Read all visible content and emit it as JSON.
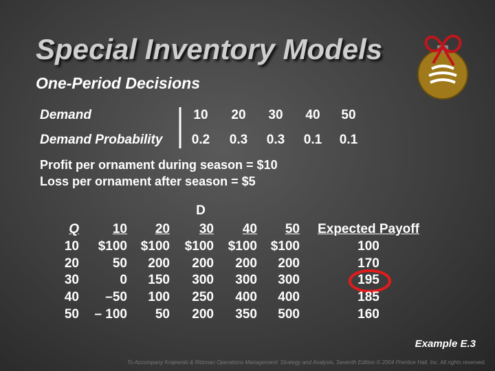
{
  "title": "Special Inventory Models",
  "subtitle": "One-Period Decisions",
  "demand_table": {
    "rows": [
      [
        "Demand",
        "10",
        "20",
        "30",
        "40",
        "50"
      ],
      [
        "Demand Probability",
        "0.2",
        "0.3",
        "0.3",
        "0.1",
        "0.1"
      ]
    ]
  },
  "notes": [
    "Profit per ornament during season = $10",
    "Loss per ornament after season = $5"
  ],
  "payoff_table": {
    "group_header": "D",
    "header": [
      "Q",
      "10",
      "20",
      "30",
      "40",
      "50",
      "Expected Payoff"
    ],
    "rows": [
      [
        "10",
        "$100",
        "$100",
        "$100",
        "$100",
        "$100",
        "100"
      ],
      [
        "20",
        "50",
        "200",
        "200",
        "200",
        "200",
        "170"
      ],
      [
        "30",
        "0",
        "150",
        "300",
        "300",
        "300",
        "195"
      ],
      [
        "40",
        "–50",
        "100",
        "250",
        "400",
        "400",
        "185"
      ],
      [
        "50",
        "– 100",
        "50",
        "200",
        "350",
        "500",
        "160"
      ]
    ]
  },
  "example": "Example E.3",
  "footer": "To Accompany Krajewski & Ritzman Operations Management: Strategy and Analysis, Seventh Edition © 2004 Prentice Hall, Inc. All rights reserved."
}
